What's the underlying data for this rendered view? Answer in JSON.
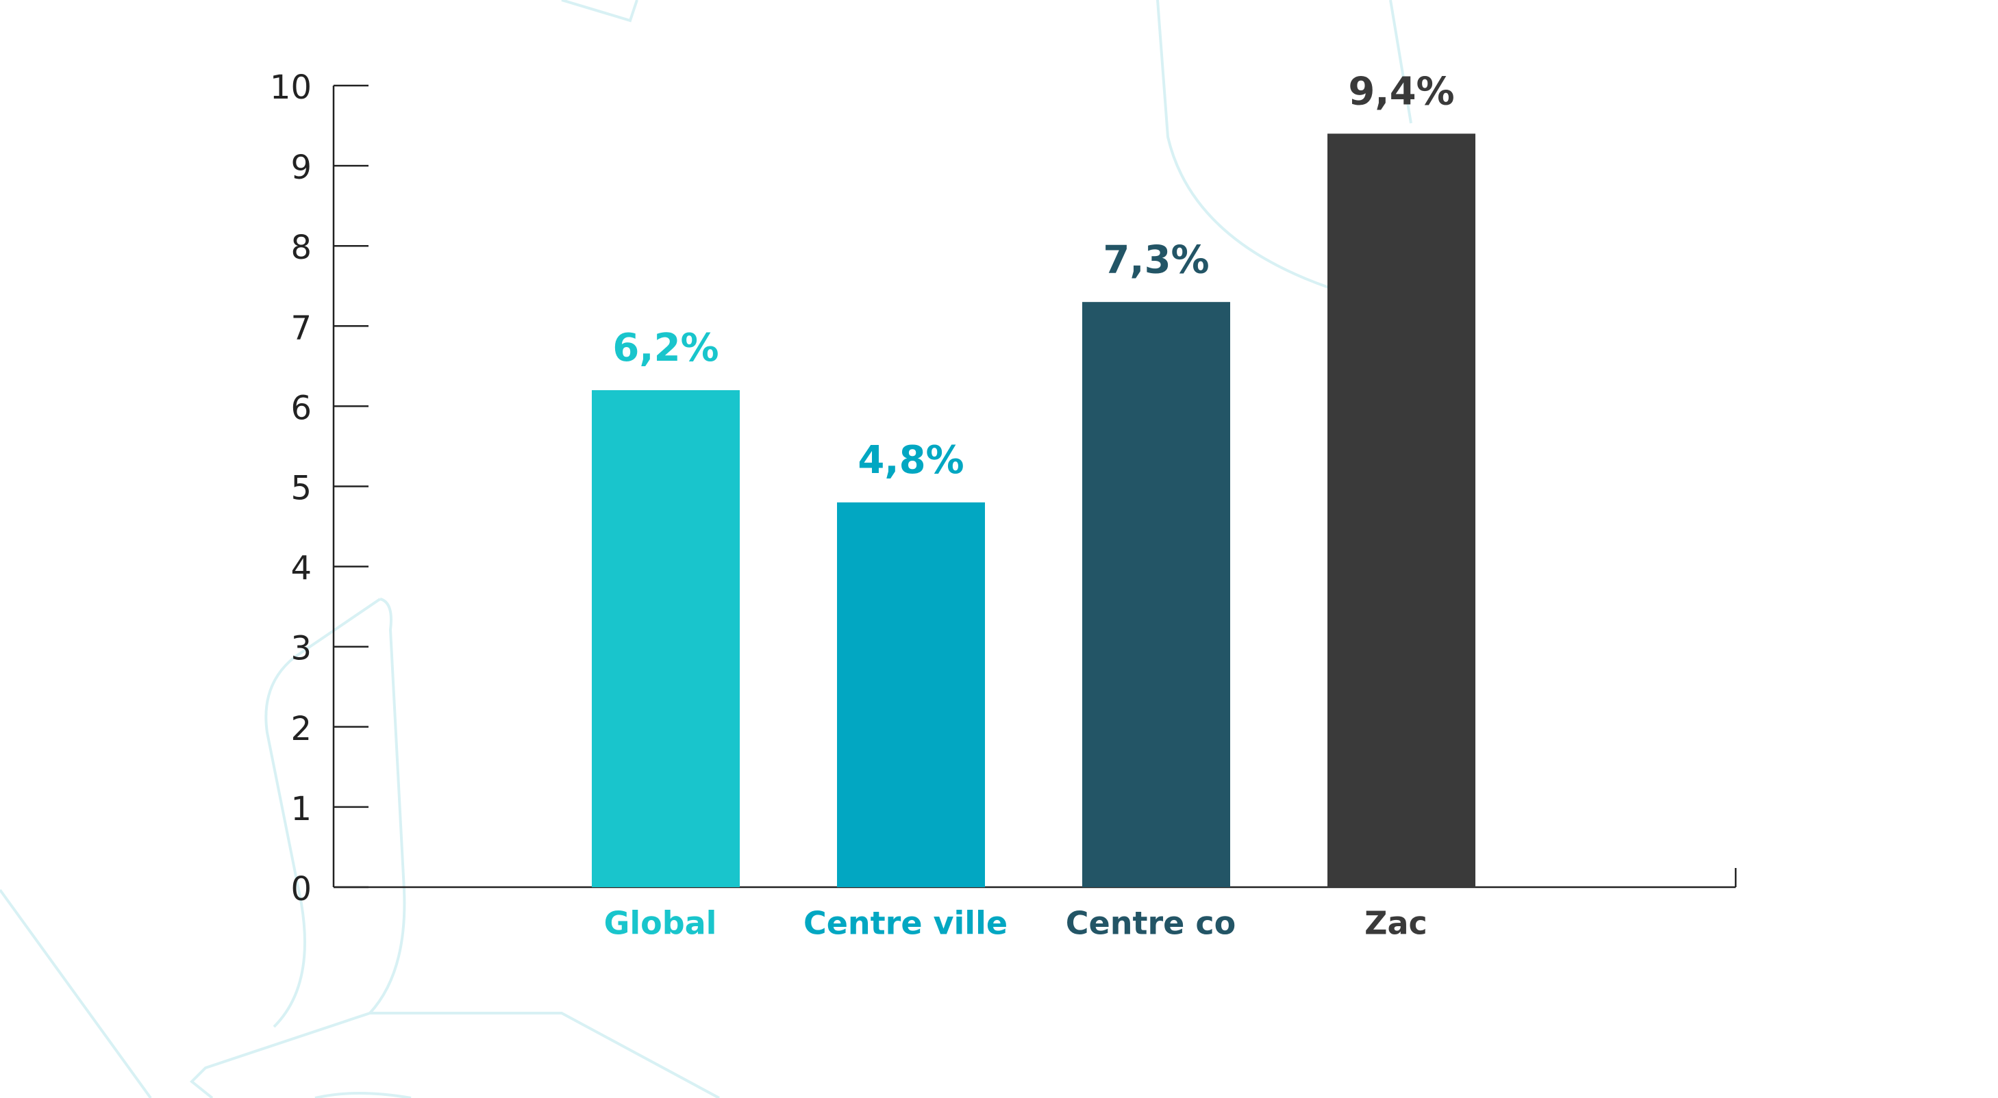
{
  "chart_data": {
    "type": "bar",
    "categories": [
      "Global",
      "Centre ville",
      "Centre co",
      "Zac"
    ],
    "values": [
      6.2,
      4.8,
      7.3,
      9.4
    ],
    "value_labels": [
      "6,2%",
      "4,8%",
      "7,3%",
      "9,4%"
    ],
    "colors": [
      "#19c5cc",
      "#02a7c2",
      "#235566",
      "#3a3a3a"
    ],
    "ylim": [
      0,
      10
    ],
    "yticks": [
      0,
      1,
      2,
      3,
      4,
      5,
      6,
      7,
      8,
      9,
      10
    ]
  }
}
